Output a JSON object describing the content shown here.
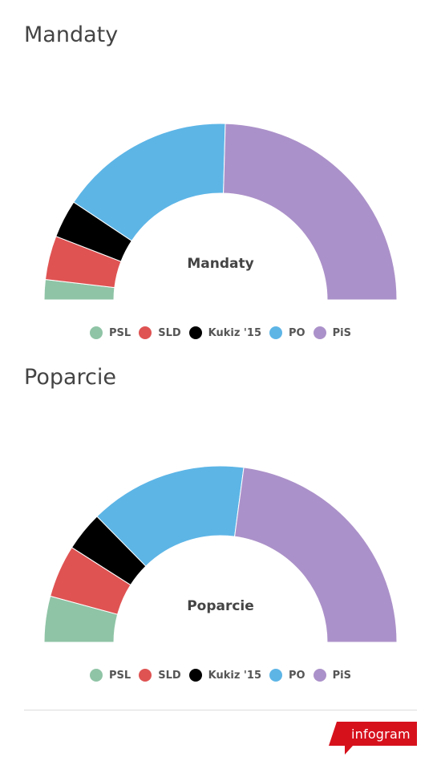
{
  "chart_data": [
    {
      "type": "half-donut",
      "title": "Mandaty",
      "center_label": "Mandaty",
      "categories": [
        "PSL",
        "SLD",
        "Kukiz '15",
        "PO",
        "PiS"
      ],
      "values": [
        17,
        37,
        32,
        148,
        226
      ],
      "colors": [
        "#8fc4a6",
        "#df5353",
        "#000000",
        "#5db5e6",
        "#ab91c9"
      ],
      "legend_position": "bottom-center"
    },
    {
      "type": "half-donut",
      "title": "Poparcie",
      "center_label": "Poparcie",
      "categories": [
        "PSL",
        "SLD",
        "Kukiz '15",
        "PO",
        "PiS"
      ],
      "values": [
        7,
        8,
        6,
        24,
        38
      ],
      "colors": [
        "#8fc4a6",
        "#df5353",
        "#000000",
        "#5db5e6",
        "#ab91c9"
      ],
      "legend_position": "bottom-center"
    }
  ],
  "footer": {
    "brand": "infogram",
    "brand_color": "#d6111c"
  }
}
